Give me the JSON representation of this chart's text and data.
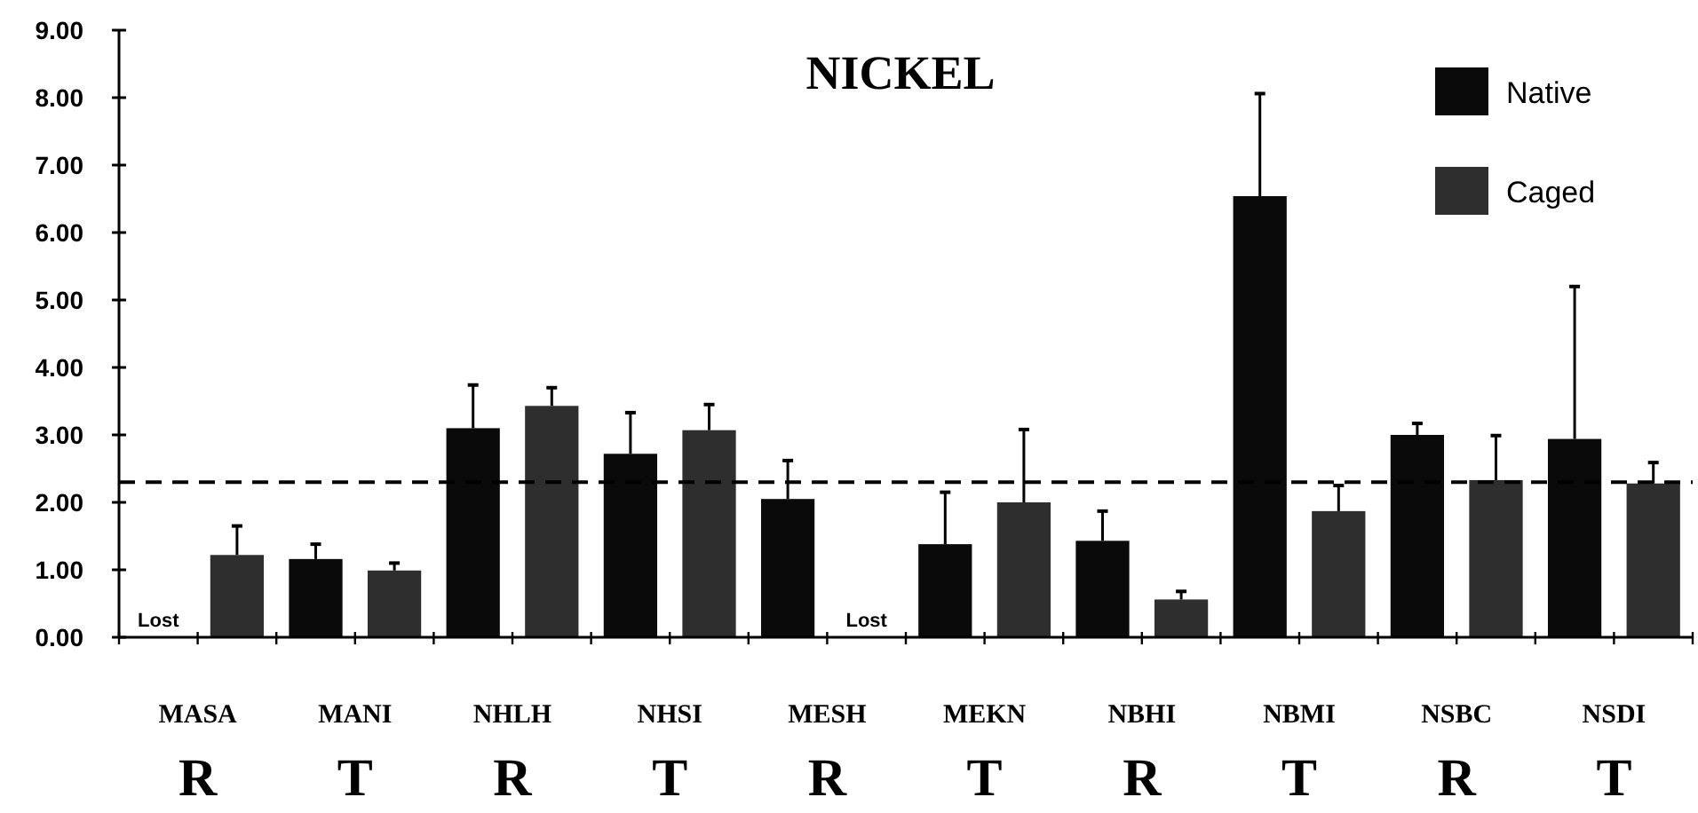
{
  "chart_data": {
    "type": "bar",
    "title": "NICKEL",
    "categories": [
      "MASA",
      "MANI",
      "NHLH",
      "NHSI",
      "MESH",
      "MEKN",
      "NBHI",
      "NBMI",
      "NSBC",
      "NSDI"
    ],
    "series": [
      {
        "name": "Native",
        "color": "#0a0a0a",
        "values": [
          null,
          1.16,
          3.1,
          2.72,
          2.05,
          1.38,
          1.43,
          6.54,
          3.0,
          2.94
        ],
        "errors": [
          null,
          [
            1.16,
            1.38
          ],
          [
            3.1,
            3.74
          ],
          [
            2.72,
            3.33
          ],
          [
            2.05,
            2.62
          ],
          [
            1.38,
            2.15
          ],
          [
            1.43,
            1.87
          ],
          [
            6.54,
            8.06
          ],
          [
            3.0,
            3.17
          ],
          [
            2.94,
            5.2
          ]
        ]
      },
      {
        "name": "Caged",
        "color": "#2e2e2e",
        "values": [
          1.22,
          0.99,
          3.43,
          3.07,
          null,
          2.0,
          0.56,
          1.87,
          2.33,
          2.28
        ],
        "errors": [
          [
            1.22,
            1.65
          ],
          [
            0.99,
            1.1
          ],
          [
            3.43,
            3.7
          ],
          [
            3.07,
            3.45
          ],
          null,
          [
            2.0,
            3.08
          ],
          [
            0.56,
            0.68
          ],
          [
            1.87,
            2.25
          ],
          [
            2.33,
            2.99
          ],
          [
            2.28,
            2.59
          ]
        ]
      }
    ],
    "ylim": [
      0,
      9
    ],
    "yticks": [
      {
        "value": 0,
        "label": "0.00"
      },
      {
        "value": 1,
        "label": "1.00"
      },
      {
        "value": 2,
        "label": "2.00"
      },
      {
        "value": 3,
        "label": "3.00"
      },
      {
        "value": 4,
        "label": "4.00"
      },
      {
        "value": 5,
        "label": "5.00"
      },
      {
        "value": 6,
        "label": "6.00"
      },
      {
        "value": 7,
        "label": "7.00"
      },
      {
        "value": 8,
        "label": "8.00"
      },
      {
        "value": 9,
        "label": "9.00"
      }
    ],
    "ref_lines": [
      {
        "axis": "y",
        "value": 2.3,
        "line_style": "dashed",
        "color": "#000000"
      }
    ],
    "legend": "top right",
    "grid": false,
    "annotations": [
      "Lost",
      "Lost",
      "R",
      "T",
      "R",
      "T",
      "R",
      "T",
      "R",
      "T",
      "R",
      "T"
    ]
  }
}
